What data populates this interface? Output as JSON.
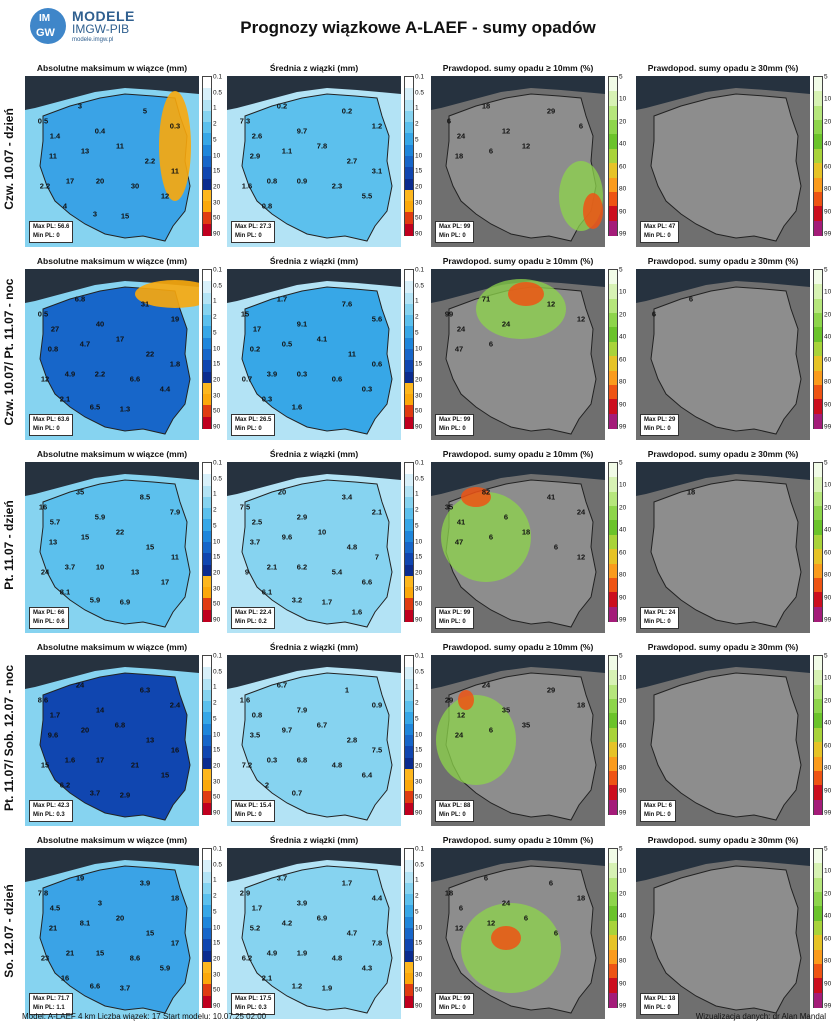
{
  "header": {
    "logo_text_1": "IM",
    "logo_text_2": "GW",
    "brand_1": "MODELE",
    "brand_2": "IMGW-PIB",
    "brand_3": "modele.imgw.pl",
    "title": "Prognozy wiązkowe A-LAEF - sumy opadów"
  },
  "colors": {
    "abs": [
      "#ffffff",
      "#d8f0fa",
      "#b3e3f5",
      "#86d3f0",
      "#5cc0ed",
      "#37a7e7",
      "#1f86db",
      "#1766c9",
      "#1046b0",
      "#0b2c8f",
      "#fdb71e",
      "#fba80b",
      "#e03c12",
      "#c0001f"
    ],
    "mean": [
      "#ffffff",
      "#d8f0fa",
      "#b3e3f5",
      "#86d3f0",
      "#5cc0ed",
      "#37a7e7",
      "#1f86db",
      "#1766c9",
      "#1046b0",
      "#0b2c8f",
      "#fdb71e",
      "#fba80b",
      "#e03c12",
      "#c0001f"
    ],
    "prob": [
      "#f1fbe7",
      "#d7f2b4",
      "#b6e67c",
      "#8ed54b",
      "#6bc32a",
      "#a9d33a",
      "#e6c327",
      "#fa9b1d",
      "#ee5414",
      "#cc0e1e",
      "#a41c79"
    ],
    "land": "#8d8d8d",
    "sea": "#26323f"
  },
  "scales": {
    "abs_ticks": [
      "0.1",
      "0.5",
      "1",
      "2",
      "5",
      "10",
      "15",
      "20",
      "30",
      "50",
      "90"
    ],
    "mean_ticks": [
      "0.1",
      "0.5",
      "1",
      "2",
      "5",
      "10",
      "15",
      "20",
      "30",
      "50",
      "90"
    ],
    "prob_ticks": [
      "5",
      "10",
      "20",
      "40",
      "60",
      "80",
      "90",
      "99"
    ]
  },
  "panel_titles": {
    "abs": "Absolutne maksimum w wiązce (mm)",
    "mean": "Średnia z wiązki (mm)",
    "p10": "Prawdopod. sumy opadu ≥ 10mm (%)",
    "p30": "Prawdopod. sumy opadu ≥ 30mm (%)"
  },
  "rows": [
    {
      "label": "Czw. 10.07 - dzień",
      "abs": {
        "max": "Max PL: 56.6",
        "min": "Min PL: 0",
        "numbers": [
          "3",
          "0.5",
          "1.4",
          "0.4",
          "5",
          "0.3",
          "11",
          "13",
          "11",
          "2.2",
          "11",
          "2.2",
          "17",
          "20",
          "30",
          "12",
          "4",
          "3",
          "15"
        ]
      },
      "mean": {
        "max": "Max PL: 27.3",
        "min": "Min PL: 0",
        "numbers": [
          "0.2",
          "7.3",
          "2.6",
          "9.7",
          "0.2",
          "1.2",
          "2.9",
          "1.1",
          "7.8",
          "2.7",
          "3.1",
          "1.6",
          "0.8",
          "0.9",
          "2.3",
          "5.5",
          "0.8"
        ]
      },
      "p10": {
        "max": "Max PL: 99",
        "min": "Min PL: 0",
        "numbers": [
          "18",
          "6",
          "24",
          "12",
          "29",
          "6",
          "18",
          "6",
          "12"
        ]
      },
      "p30": {
        "max": "Max PL: 47",
        "min": "Min PL: 0",
        "numbers": []
      }
    },
    {
      "label": "Czw. 10.07/ Pt. 11.07 - noc",
      "abs": {
        "max": "Max PL: 63.6",
        "min": "Min PL: 0",
        "numbers": [
          "6.8",
          "0.5",
          "27",
          "40",
          "31",
          "19",
          "0.8",
          "4.7",
          "17",
          "22",
          "1.8",
          "12",
          "4.9",
          "2.2",
          "6.6",
          "4.4",
          "2.1",
          "6.5",
          "1.3"
        ]
      },
      "mean": {
        "max": "Max PL: 26.5",
        "min": "Min PL: 0",
        "numbers": [
          "1.7",
          "15",
          "17",
          "9.1",
          "7.6",
          "5.6",
          "0.2",
          "0.5",
          "4.1",
          "11",
          "0.6",
          "0.7",
          "3.9",
          "0.3",
          "0.6",
          "0.3",
          "0.3",
          "1.6"
        ]
      },
      "p10": {
        "max": "Max PL: 99",
        "min": "Min PL: 0",
        "numbers": [
          "71",
          "99",
          "24",
          "24",
          "12",
          "12",
          "47",
          "6"
        ]
      },
      "p30": {
        "max": "Max PL: 29",
        "min": "Min PL: 0",
        "numbers": [
          "6",
          "6"
        ]
      }
    },
    {
      "label": "Pt. 11.07 - dzień",
      "abs": {
        "max": "Max PL: 66",
        "min": "Min PL: 0.6",
        "numbers": [
          "35",
          "16",
          "5.7",
          "5.9",
          "8.5",
          "7.9",
          "13",
          "15",
          "22",
          "15",
          "11",
          "24",
          "3.7",
          "10",
          "13",
          "17",
          "8.1",
          "5.9",
          "6.9"
        ]
      },
      "mean": {
        "max": "Max PL: 22.4",
        "min": "Min PL: 0.2",
        "numbers": [
          "20",
          "7.5",
          "2.5",
          "2.9",
          "3.4",
          "2.1",
          "3.7",
          "9.6",
          "10",
          "4.8",
          "7",
          "9",
          "2.1",
          "6.2",
          "5.4",
          "6.6",
          "6.1",
          "3.2",
          "1.7",
          "1.6"
        ]
      },
      "p10": {
        "max": "Max PL: 99",
        "min": "Min PL: 0",
        "numbers": [
          "82",
          "35",
          "41",
          "6",
          "41",
          "24",
          "47",
          "6",
          "18",
          "6",
          "12"
        ]
      },
      "p30": {
        "max": "Max PL: 24",
        "min": "Min PL: 0",
        "numbers": [
          "18"
        ]
      }
    },
    {
      "label": "Pt. 11.07/ Sob. 12.07 - noc",
      "abs": {
        "max": "Max PL: 42.3",
        "min": "Min PL: 0.3",
        "numbers": [
          "24",
          "8.6",
          "1.7",
          "14",
          "6.3",
          "2.4",
          "9.6",
          "20",
          "6.8",
          "13",
          "16",
          "15",
          "1.6",
          "17",
          "21",
          "15",
          "6.2",
          "3.7",
          "2.9"
        ]
      },
      "mean": {
        "max": "Max PL: 15.4",
        "min": "Min PL: 0",
        "numbers": [
          "6.7",
          "1.6",
          "0.8",
          "7.9",
          "1",
          "0.9",
          "3.5",
          "9.7",
          "6.7",
          "2.8",
          "7.5",
          "7.2",
          "0.3",
          "6.8",
          "4.8",
          "6.4",
          "2",
          "0.7"
        ]
      },
      "p10": {
        "max": "Max PL: 88",
        "min": "Min PL: 0",
        "numbers": [
          "24",
          "29",
          "12",
          "35",
          "29",
          "18",
          "24",
          "6",
          "35"
        ]
      },
      "p30": {
        "max": "Max PL: 6",
        "min": "Min PL: 0",
        "numbers": []
      }
    },
    {
      "label": "So. 12.07 - dzień",
      "abs": {
        "max": "Max PL: 71.7",
        "min": "Min PL: 1.1",
        "numbers": [
          "19",
          "7.8",
          "4.5",
          "3",
          "3.9",
          "18",
          "21",
          "8.1",
          "20",
          "15",
          "17",
          "23",
          "21",
          "15",
          "8.6",
          "5.9",
          "16",
          "6.6",
          "3.7"
        ]
      },
      "mean": {
        "max": "Max PL: 17.5",
        "min": "Min PL: 0.3",
        "numbers": [
          "3.7",
          "2.9",
          "1.7",
          "3.9",
          "1.7",
          "4.4",
          "5.2",
          "4.2",
          "6.9",
          "4.7",
          "7.8",
          "6.2",
          "4.9",
          "1.9",
          "4.8",
          "4.3",
          "2.1",
          "1.2",
          "1.9"
        ]
      },
      "p10": {
        "max": "Max PL: 99",
        "min": "Min PL: 0",
        "numbers": [
          "6",
          "18",
          "6",
          "24",
          "6",
          "18",
          "12",
          "12",
          "6",
          "6"
        ]
      },
      "p30": {
        "max": "Max PL: 18",
        "min": "Min PL: 0",
        "numbers": []
      }
    }
  ],
  "footer": {
    "left": "Model: A-LAEF 4 km Liczba wiązek: 17    Start modelu: 10.07.25 02:00",
    "right": "Wizualizacja danych: dr Alan Mandal"
  }
}
